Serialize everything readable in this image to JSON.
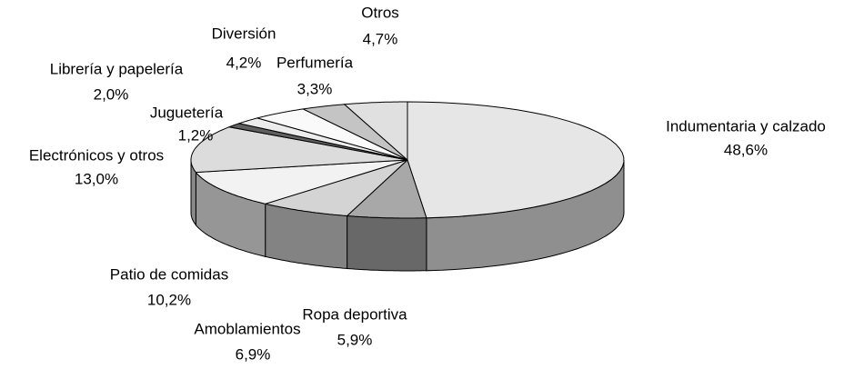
{
  "chart_data": {
    "type": "pie",
    "categories": [
      "Indumentaria y calzado",
      "Ropa deportiva",
      "Amoblamientos",
      "Patio de comidas",
      "Electrónicos y otros",
      "Juguetería",
      "Librería y papelería",
      "Diversión",
      "Perfumería",
      "Otros"
    ],
    "values": [
      48.6,
      5.9,
      6.9,
      10.2,
      13.0,
      1.2,
      2.0,
      4.2,
      3.3,
      4.7
    ],
    "value_labels": [
      "48,6%",
      "5,9%",
      "6,9%",
      "10,2%",
      "13,0%",
      "1,2%",
      "2,0%",
      "4,2%",
      "3,3%",
      "4,7%"
    ],
    "colors": [
      "#e6e6e6",
      "#a8a8a8",
      "#d4d4d4",
      "#f2f2f2",
      "#dcdcdc",
      "#606060",
      "#ececec",
      "#fafafa",
      "#c4c4c4",
      "#e0e0e0"
    ]
  }
}
